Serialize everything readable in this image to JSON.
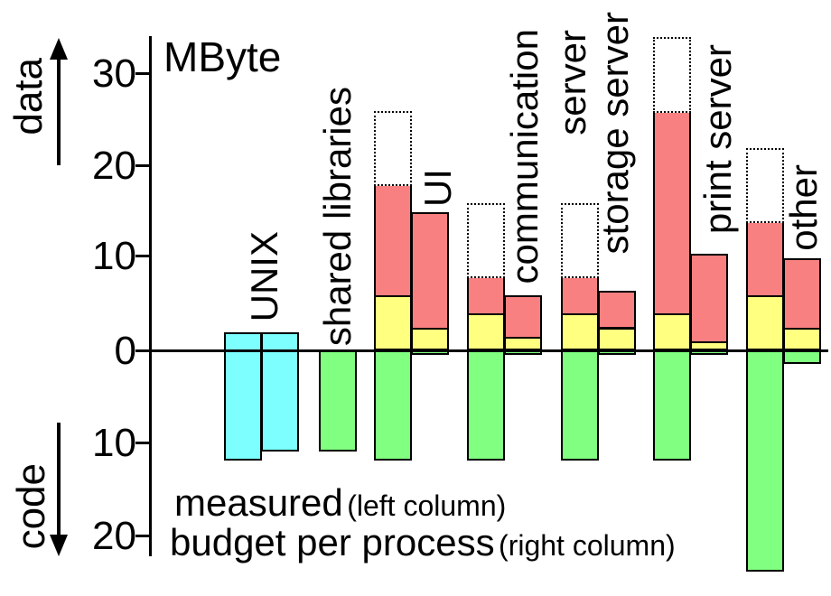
{
  "labels": {
    "unit": "MByte",
    "data_axis": "data",
    "code_axis": "code",
    "tick_labels": [
      "30",
      "20",
      "10",
      "0",
      "10",
      "20"
    ],
    "legend_measured": "measured",
    "legend_measured_note": "(left column)",
    "legend_budget": "budget per process",
    "legend_budget_note": "(right column)"
  },
  "chart_data": {
    "type": "bar",
    "orientation": "diverging-vertical",
    "unit": "MByte",
    "title": "MByte",
    "positive_axis_label": "data",
    "negative_axis_label": "code",
    "yticks_positive": [
      30,
      20,
      10,
      0
    ],
    "yticks_negative": [
      10,
      20
    ],
    "grid": false,
    "legend": [
      {
        "name": "measured",
        "note": "(left column)"
      },
      {
        "name": "budget per process",
        "note": "(right column)"
      }
    ],
    "colors": {
      "unix_fill": "#7DFFFF",
      "data_fill": "#F98080",
      "base_fill": "#FFFF80",
      "code_fill": "#80FF80",
      "budget_outline_style": "dotted black on white",
      "axis": "#000000"
    },
    "semantics": "Positive direction = data (MByte), negative direction = code (MByte). Left column of each pair = measured (dotted outline extends to budget total); right column = budget per process.",
    "groups": [
      {
        "label": "UNIX",
        "columns": [
          {
            "role": "measured",
            "style": "unix",
            "data_top": 2,
            "code": 12
          },
          {
            "role": "budget",
            "style": "unix",
            "data_top": 2,
            "code": 11
          }
        ]
      },
      {
        "label": "shared libraries",
        "columns": [
          {
            "role": "measured",
            "style": "code-only",
            "code": 11
          }
        ]
      },
      {
        "label": "UI",
        "columns": [
          {
            "role": "measured",
            "yellow": 6,
            "data_total": 18,
            "budget_total": 26,
            "code": 12
          },
          {
            "role": "budget",
            "yellow": 2.5,
            "data_total": 15,
            "code": 0.5
          }
        ]
      },
      {
        "label": "communication",
        "columns": [
          {
            "role": "measured",
            "yellow": 4,
            "data_total": 8,
            "budget_total": 16,
            "code": 12
          },
          {
            "role": "budget",
            "yellow": 1.5,
            "data_total": 6,
            "code": 0.5
          }
        ]
      },
      {
        "label": "server",
        "columns": [
          {
            "role": "measured",
            "yellow": 4,
            "data_total": 8,
            "budget_total": 16,
            "code": 12
          }
        ]
      },
      {
        "label": "storage server",
        "columns": [
          {
            "role": "budget",
            "yellow": 2.5,
            "data_total": 6.5,
            "code": 0.5
          }
        ]
      },
      {
        "label": "print server",
        "columns": [
          {
            "role": "measured",
            "yellow": 4,
            "data_total": 26,
            "budget_total": 34,
            "code": 12
          },
          {
            "role": "budget",
            "yellow": 1,
            "data_total": 10.5,
            "code": 0.5
          }
        ]
      },
      {
        "label": "other",
        "columns": [
          {
            "role": "measured",
            "yellow": 6,
            "data_total": 14,
            "budget_total": 22,
            "code": 24
          },
          {
            "role": "budget",
            "yellow": 2.5,
            "data_total": 10,
            "code": 1.5
          }
        ]
      }
    ]
  }
}
